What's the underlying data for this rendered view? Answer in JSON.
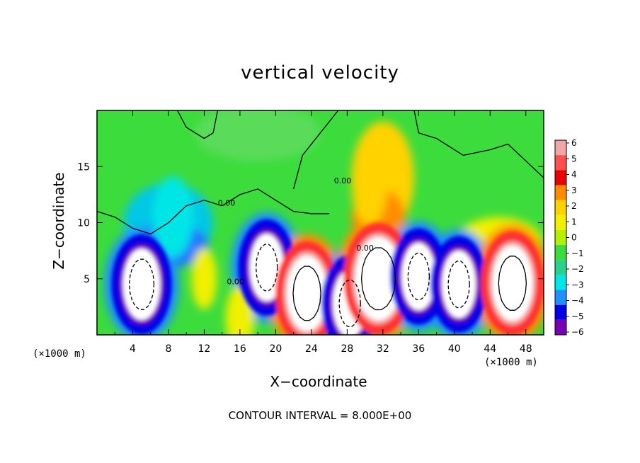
{
  "chart_data": {
    "type": "heatmap",
    "title": "vertical velocity",
    "xlabel": "X−coordinate",
    "ylabel": "Z−coordinate",
    "x_unit": "(×1000 m)",
    "x_unit_right": "(×1000 m)",
    "xlim": [
      0,
      50
    ],
    "ylim": [
      0,
      20
    ],
    "x_ticks": [
      "4",
      "8",
      "12",
      "16",
      "20",
      "24",
      "28",
      "32",
      "36",
      "40",
      "44",
      "48"
    ],
    "y_ticks": [
      "5",
      "10",
      "15"
    ],
    "footer": "CONTOUR INTERVAL = 8.000E+00",
    "contour_label": "0.00",
    "colorbar": {
      "range": [
        -6,
        6
      ],
      "labels": [
        "6",
        "5",
        "4",
        "3",
        "2",
        "1",
        "0",
        "−1",
        "−2",
        "−3",
        "−4",
        "−5",
        "−6"
      ],
      "colors": [
        "#f4a6a6",
        "#ff5050",
        "#e80000",
        "#ff8c00",
        "#ffd200",
        "#f0f000",
        "#b4f000",
        "#3cdc3c",
        "#28d28c",
        "#00e6e6",
        "#1e90ff",
        "#0000e6",
        "#7800b4"
      ]
    },
    "features": [
      {
        "x": 5.0,
        "z": 4.5,
        "w": -6.5
      },
      {
        "x": 8.5,
        "z": 10.5,
        "w": -4
      },
      {
        "x": 19.0,
        "z": 6.0,
        "w": -6
      },
      {
        "x": 23.5,
        "z": 3.7,
        "w": 7
      },
      {
        "x": 28.3,
        "z": 2.8,
        "w": -6
      },
      {
        "x": 31.5,
        "z": 5.0,
        "w": 8
      },
      {
        "x": 30.5,
        "z": 13.0,
        "w": 3
      },
      {
        "x": 36.0,
        "z": 5.2,
        "w": -6
      },
      {
        "x": 40.5,
        "z": 4.5,
        "w": -6
      },
      {
        "x": 46.5,
        "z": 4.6,
        "w": 7
      },
      {
        "x": 16.0,
        "z": 1.5,
        "w": 2
      },
      {
        "x": 12.0,
        "z": 5.0,
        "w": 1.5
      }
    ]
  }
}
